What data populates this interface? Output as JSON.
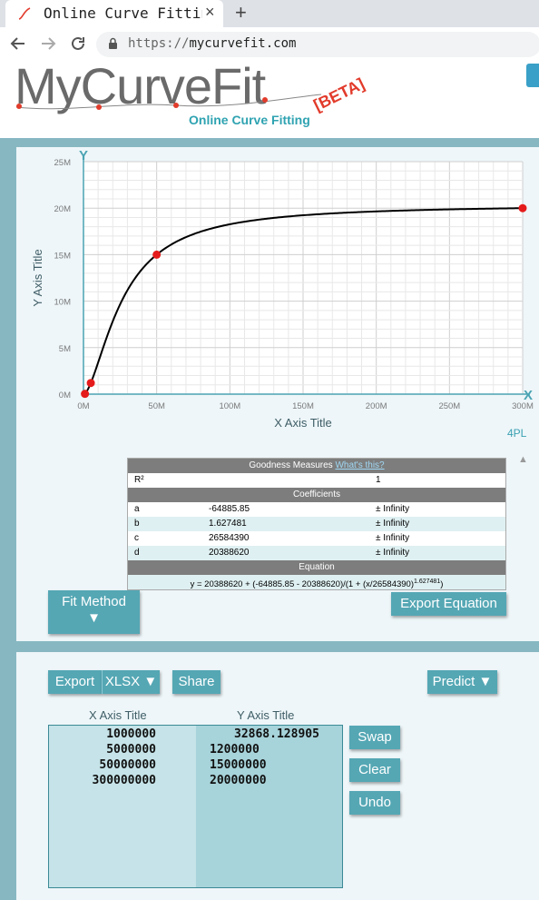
{
  "browser": {
    "tab_title": "Online Curve Fitting",
    "tab_close": "×",
    "new_tab": "+",
    "url_scheme": "https://",
    "url_host": "mycurvefit.com"
  },
  "header": {
    "logo_text": "MyCurveFit",
    "logo_subtitle": "Online Curve Fitting",
    "logo_badge": "[BETA]"
  },
  "chart_data": {
    "type": "line",
    "xlabel": "X Axis Title",
    "ylabel": "Y Axis Title",
    "xlim": [
      0,
      300000000
    ],
    "ylim": [
      0,
      25000000
    ],
    "x_ticks": [
      "0M",
      "50M",
      "100M",
      "150M",
      "200M",
      "250M",
      "300M"
    ],
    "y_ticks": [
      "0M",
      "5M",
      "10M",
      "15M",
      "20M",
      "25M"
    ],
    "grid": true,
    "points": [
      {
        "x": 1000000,
        "y": 32868.128905
      },
      {
        "x": 5000000,
        "y": 1200000
      },
      {
        "x": 50000000,
        "y": 15000000
      },
      {
        "x": 300000000,
        "y": 20000000
      }
    ],
    "fit": {
      "a": -64885.85,
      "b": 1.627481,
      "c": 26584390,
      "d": 20388620
    }
  },
  "curve_type": "4PL",
  "results": {
    "goodness_title": "Goodness Measures",
    "whats_this": "What's this?",
    "r2_label": "R²",
    "r2_value": "1",
    "coefficients_title": "Coefficients",
    "coefficients": [
      {
        "name": "a",
        "value": "-64885.85",
        "error": "± Infinity"
      },
      {
        "name": "b",
        "value": "1.627481",
        "error": "± Infinity"
      },
      {
        "name": "c",
        "value": "26584390",
        "error": "± Infinity"
      },
      {
        "name": "d",
        "value": "20388620",
        "error": "± Infinity"
      }
    ],
    "equation_title": "Equation",
    "equation_main": "y = 20388620 + (-64885.85 - 20388620)/(1 + (x/26584390)",
    "equation_exp": "1.627481",
    "equation_end": ")"
  },
  "controls": {
    "fit_method": "Fit Method",
    "fit_method_arrow": "▼",
    "export_equation": "Export Equation",
    "sort_arrow": "▲"
  },
  "data_panel": {
    "export": "Export",
    "xlsx": "XLSX ▼",
    "share": "Share",
    "predict": "Predict ▼",
    "x_header": "X Axis Title",
    "y_header": "Y Axis Title",
    "rows": [
      {
        "x": "1000000",
        "y": "32868.128905"
      },
      {
        "x": "5000000",
        "y": "1200000"
      },
      {
        "x": "50000000",
        "y": "15000000"
      },
      {
        "x": "300000000",
        "y": "20000000"
      }
    ],
    "swap": "Swap",
    "clear": "Clear",
    "undo": "Undo"
  }
}
